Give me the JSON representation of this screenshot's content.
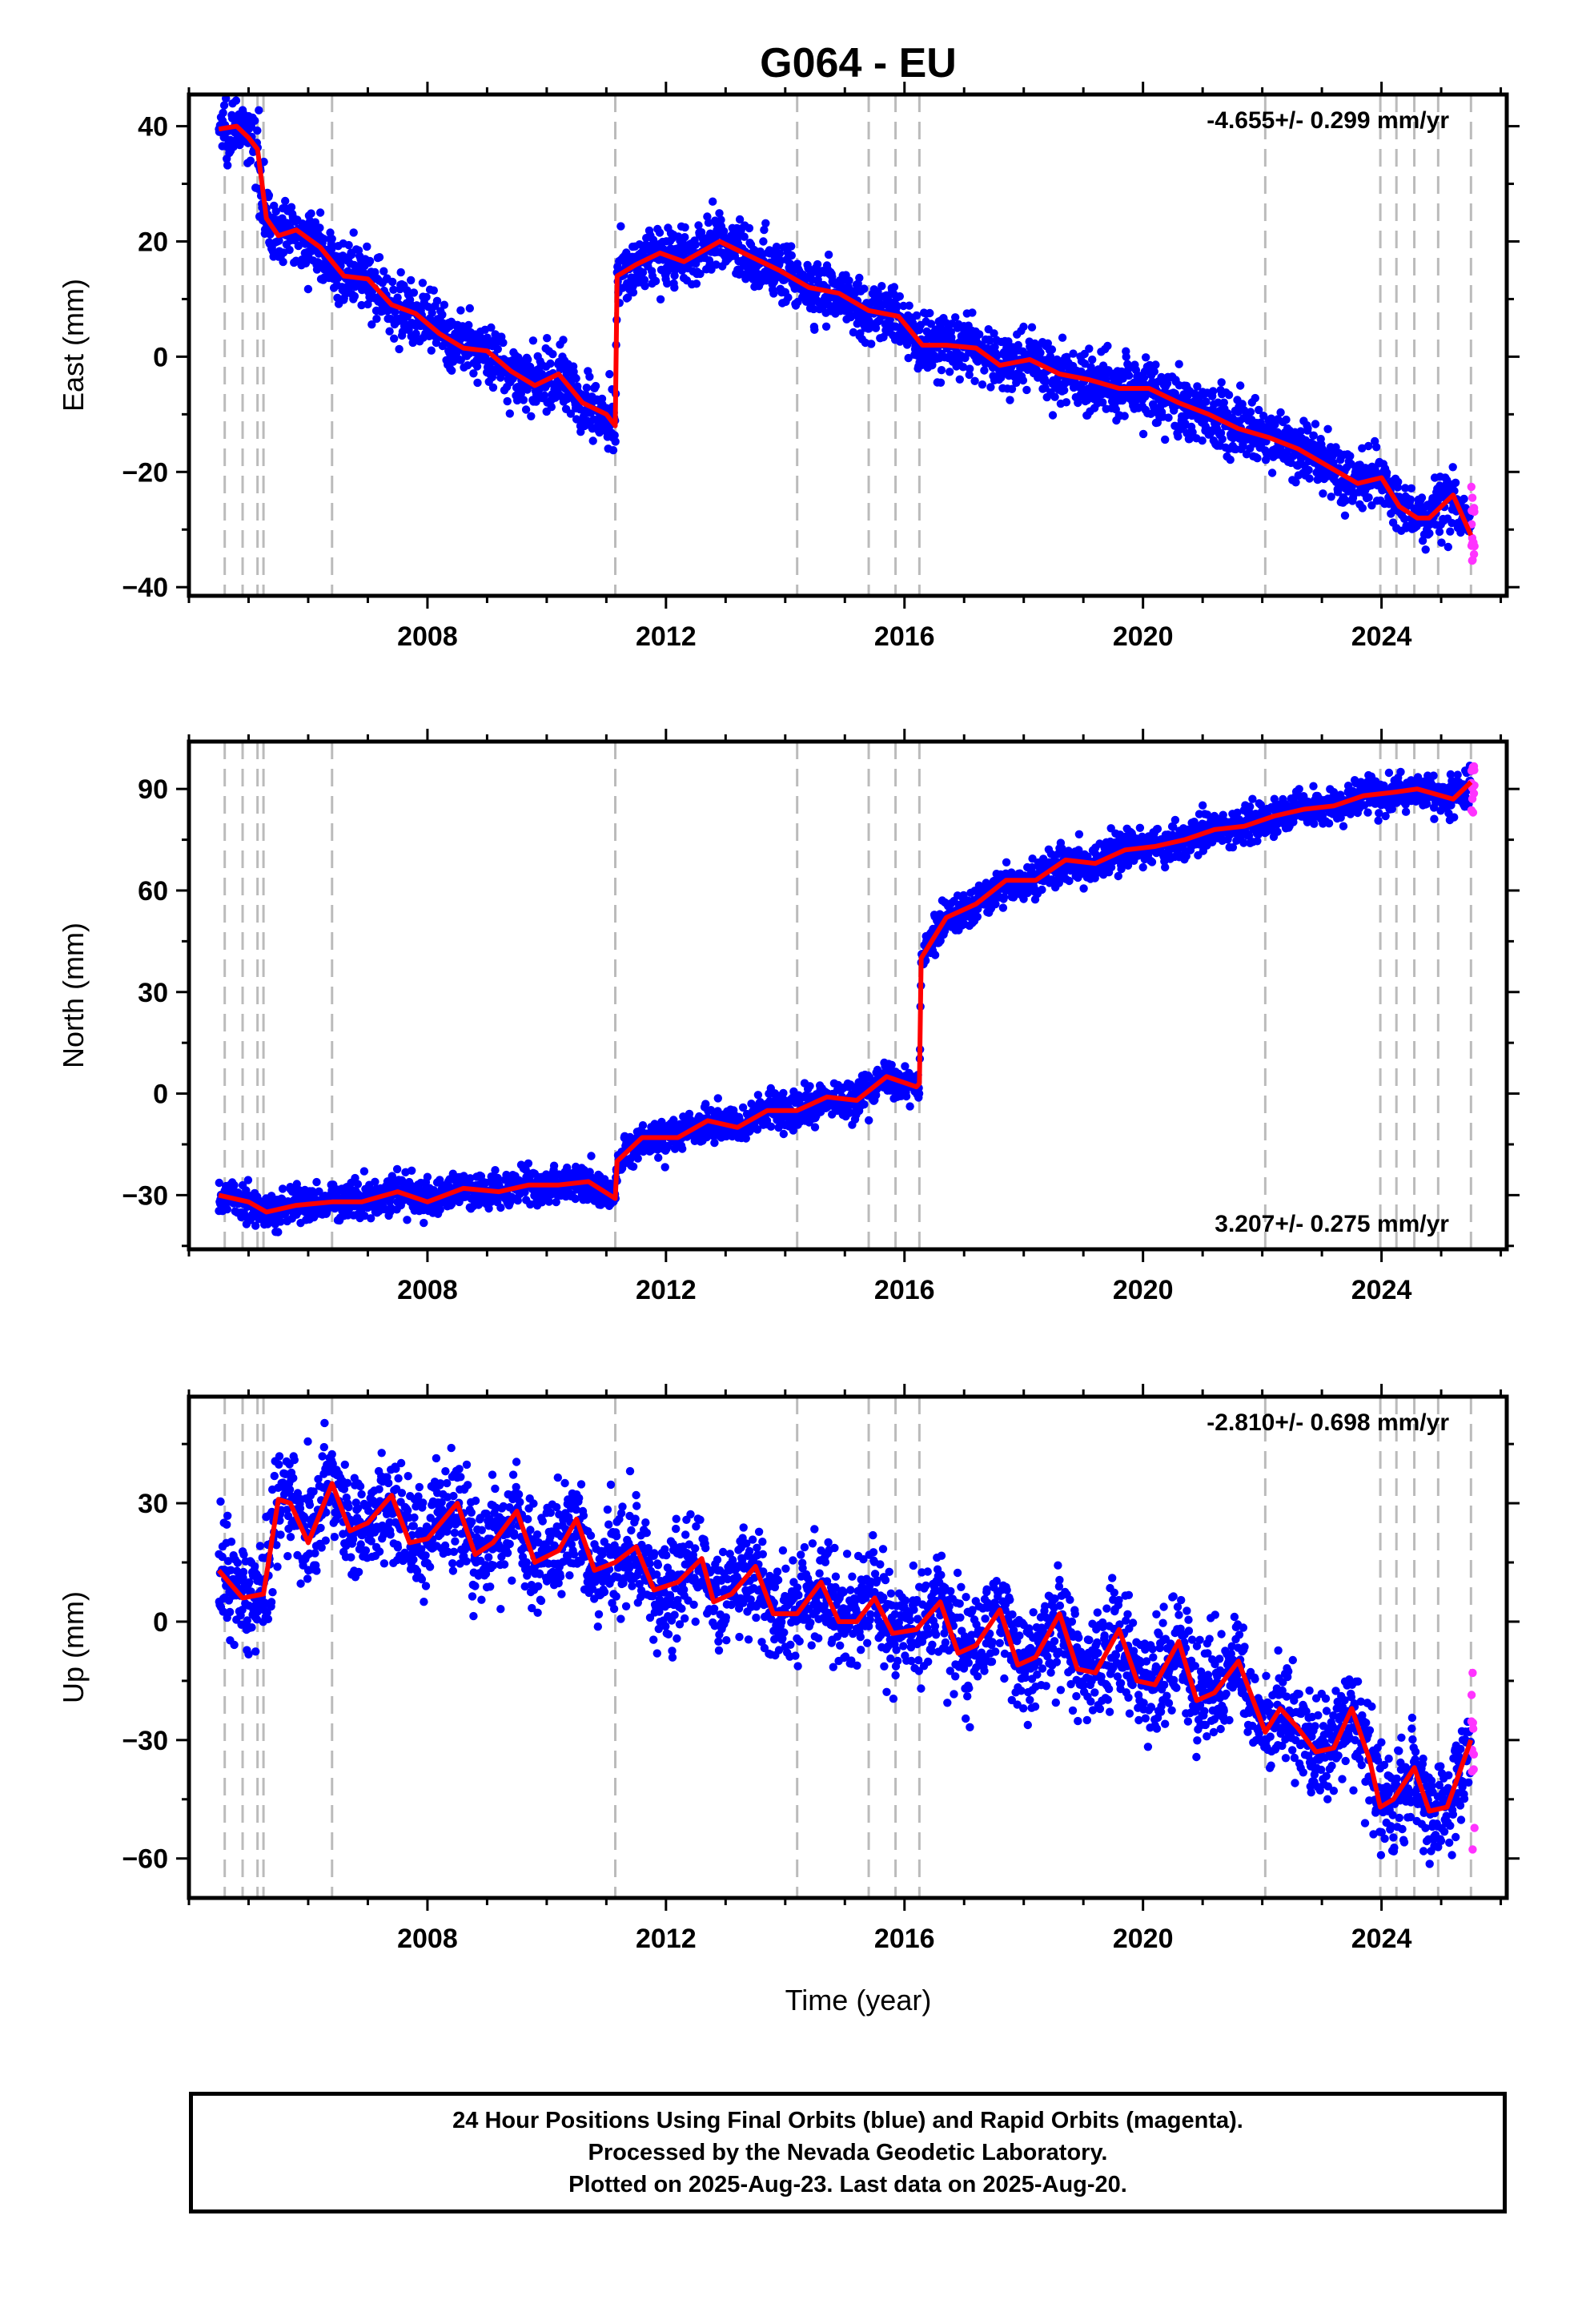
{
  "title": "G064 - EU",
  "colors": {
    "final": "#0000ff",
    "rapid": "#ff33ff",
    "model": "#ff0000",
    "events": "#bbbbbb",
    "axis": "#000000"
  },
  "xlabel": "Time (year)",
  "footer": [
    "24 Hour Positions Using Final Orbits (blue) and Rapid Orbits (magenta).",
    "Processed by the Nevada Geodetic Laboratory.",
    "Plotted on 2025-Aug-23. Last data on 2025-Aug-20."
  ],
  "chart_data": [
    {
      "type": "scatter",
      "title": "G064 - EU",
      "ylabel": "East (mm)",
      "xlim": [
        2004.0,
        2026.1
      ],
      "ylim": [
        -41.5,
        45.5
      ],
      "xticks": [
        2008,
        2012,
        2016,
        2020,
        2024
      ],
      "yticks": [
        -40,
        -20,
        0,
        20,
        40
      ],
      "ytick_labels": [
        "−40",
        "−20",
        "0",
        "20",
        "40"
      ],
      "velocity": "-4.655+/- 0.299 mm/yr",
      "velocity_position": "top-right",
      "event_lines": [
        2004.6,
        2004.9,
        2005.15,
        2005.25,
        2006.4,
        2011.15,
        2014.2,
        2015.4,
        2015.85,
        2016.25,
        2022.05,
        2023.98,
        2024.25,
        2024.55,
        2024.95,
        2025.5
      ],
      "model": {
        "name": "model",
        "x": [
          2004.5,
          2004.8,
          2005.0,
          2005.15,
          2005.3,
          2005.5,
          2005.8,
          2006.2,
          2006.6,
          2007.0,
          2007.4,
          2007.8,
          2008.2,
          2008.6,
          2009.0,
          2009.4,
          2009.8,
          2010.2,
          2010.6,
          2011.0,
          2011.15,
          2011.18,
          2011.5,
          2011.9,
          2012.3,
          2012.9,
          2013.4,
          2013.9,
          2014.4,
          2014.9,
          2015.4,
          2015.9,
          2016.3,
          2016.7,
          2017.2,
          2017.6,
          2018.1,
          2018.6,
          2019.1,
          2019.6,
          2020.1,
          2020.6,
          2021.1,
          2021.6,
          2022.1,
          2022.6,
          2023.1,
          2023.6,
          2024.0,
          2024.3,
          2024.6,
          2024.8,
          2025.2,
          2025.5
        ],
        "y": [
          39.5,
          40.0,
          38.0,
          36.0,
          24.0,
          21.0,
          22.0,
          19.0,
          14.0,
          13.5,
          9.0,
          7.5,
          4.0,
          1.5,
          1.0,
          -2.5,
          -5.0,
          -3.0,
          -8.0,
          -10.0,
          -12.0,
          14.0,
          16.0,
          18.0,
          16.5,
          20.0,
          17.5,
          15.0,
          12.0,
          11.0,
          8.0,
          7.0,
          2.0,
          2.0,
          1.5,
          -1.5,
          -0.5,
          -3.0,
          -4.0,
          -5.5,
          -5.5,
          -8.0,
          -10.0,
          -12.5,
          -14.0,
          -16.0,
          -19.0,
          -22.0,
          -21.0,
          -26.0,
          -28.0,
          -28.0,
          -24.0,
          -31.0
        ]
      },
      "series": [
        {
          "name": "final",
          "noise": 2.6,
          "x_end": 2025.5,
          "rapid_noise": 4.5,
          "rapid_count": 14
        }
      ]
    },
    {
      "type": "scatter",
      "ylabel": "North (mm)",
      "xlim": [
        2004.0,
        2026.1
      ],
      "ylim": [
        -46,
        104
      ],
      "xticks": [
        2008,
        2012,
        2016,
        2020,
        2024
      ],
      "yticks": [
        -30,
        0,
        30,
        60,
        90
      ],
      "ytick_labels": [
        "−30",
        "0",
        "30",
        "60",
        "90"
      ],
      "velocity": "3.207+/- 0.275 mm/yr",
      "velocity_position": "bottom-right",
      "event_lines": [
        2004.6,
        2004.9,
        2005.15,
        2005.25,
        2006.4,
        2011.15,
        2014.2,
        2015.4,
        2015.85,
        2016.25,
        2022.05,
        2023.98,
        2024.25,
        2024.55,
        2024.95,
        2025.5
      ],
      "model": {
        "name": "model",
        "x": [
          2004.5,
          2005.0,
          2005.3,
          2005.8,
          2006.4,
          2006.9,
          2007.5,
          2008.0,
          2008.6,
          2009.2,
          2009.7,
          2010.2,
          2010.7,
          2011.15,
          2011.18,
          2011.6,
          2012.2,
          2012.7,
          2013.2,
          2013.7,
          2014.2,
          2014.7,
          2015.2,
          2015.7,
          2016.2,
          2016.25,
          2016.28,
          2016.7,
          2017.2,
          2017.7,
          2018.2,
          2018.7,
          2019.2,
          2019.7,
          2020.2,
          2020.7,
          2021.2,
          2021.7,
          2022.2,
          2022.7,
          2023.2,
          2023.7,
          2024.2,
          2024.6,
          2025.0,
          2025.2,
          2025.5
        ],
        "y": [
          -30,
          -32,
          -35,
          -33,
          -32,
          -32,
          -29,
          -32,
          -28,
          -29,
          -27,
          -27,
          -26,
          -31,
          -20,
          -13,
          -13,
          -8,
          -10,
          -5,
          -5,
          -1,
          -2,
          5,
          2,
          3,
          40,
          52,
          56,
          63,
          63,
          69,
          68,
          72,
          73,
          75,
          78,
          79,
          82,
          84,
          85,
          88,
          89,
          90,
          88,
          87,
          92
        ]
      },
      "series": [
        {
          "name": "final",
          "noise": 2.6,
          "x_end": 2025.5,
          "rapid_noise": 3.5,
          "rapid_count": 12
        }
      ]
    },
    {
      "type": "scatter",
      "ylabel": "Up (mm)",
      "xlabel": "Time (year)",
      "xlim": [
        2004.0,
        2026.1
      ],
      "ylim": [
        -70,
        57
      ],
      "xticks": [
        2008,
        2012,
        2016,
        2020,
        2024
      ],
      "yticks": [
        -60,
        -30,
        0,
        30
      ],
      "ytick_labels": [
        "−60",
        "−30",
        "0",
        "30"
      ],
      "velocity": "-2.810+/- 0.698 mm/yr",
      "velocity_position": "top-right",
      "event_lines": [
        2004.6,
        2004.9,
        2005.15,
        2005.25,
        2006.4,
        2011.15,
        2014.2,
        2015.4,
        2015.85,
        2016.25,
        2022.05,
        2023.98,
        2024.25,
        2024.55,
        2024.95,
        2025.5
      ],
      "model": {
        "name": "model",
        "x": [
          2004.5,
          2004.9,
          2005.25,
          2005.5,
          2005.7,
          2006.0,
          2006.4,
          2006.7,
          2007.0,
          2007.4,
          2007.7,
          2008.0,
          2008.5,
          2008.8,
          2009.1,
          2009.5,
          2009.8,
          2010.2,
          2010.5,
          2010.8,
          2011.15,
          2011.5,
          2011.8,
          2012.2,
          2012.6,
          2012.8,
          2013.1,
          2013.5,
          2013.8,
          2014.2,
          2014.6,
          2014.9,
          2015.2,
          2015.5,
          2015.8,
          2016.2,
          2016.6,
          2016.9,
          2017.2,
          2017.6,
          2017.9,
          2018.2,
          2018.6,
          2018.9,
          2019.2,
          2019.6,
          2019.9,
          2020.2,
          2020.6,
          2020.9,
          2021.2,
          2021.6,
          2021.9,
          2022.05,
          2022.3,
          2022.6,
          2022.9,
          2023.2,
          2023.5,
          2023.8,
          2023.98,
          2024.2,
          2024.55,
          2024.8,
          2025.1,
          2025.5
        ],
        "y": [
          13,
          6,
          7,
          31,
          30,
          20,
          35,
          23,
          25,
          32,
          20,
          21,
          30,
          17,
          20,
          28,
          15,
          18,
          26,
          13,
          15,
          19,
          8,
          10,
          16,
          5,
          7,
          14,
          2,
          2,
          10,
          0,
          0,
          6,
          -3,
          -2,
          5,
          -8,
          -6,
          3,
          -11,
          -9,
          2,
          -12,
          -13,
          -2,
          -15,
          -16,
          -5,
          -20,
          -18,
          -10,
          -22,
          -28,
          -22,
          -27,
          -33,
          -32,
          -22,
          -35,
          -47,
          -45,
          -37,
          -48,
          -47,
          -30
        ]
      },
      "series": [
        {
          "name": "final",
          "noise": 6.5,
          "x_end": 2025.5,
          "rapid_noise": 14,
          "rapid_count": 12
        }
      ]
    }
  ]
}
